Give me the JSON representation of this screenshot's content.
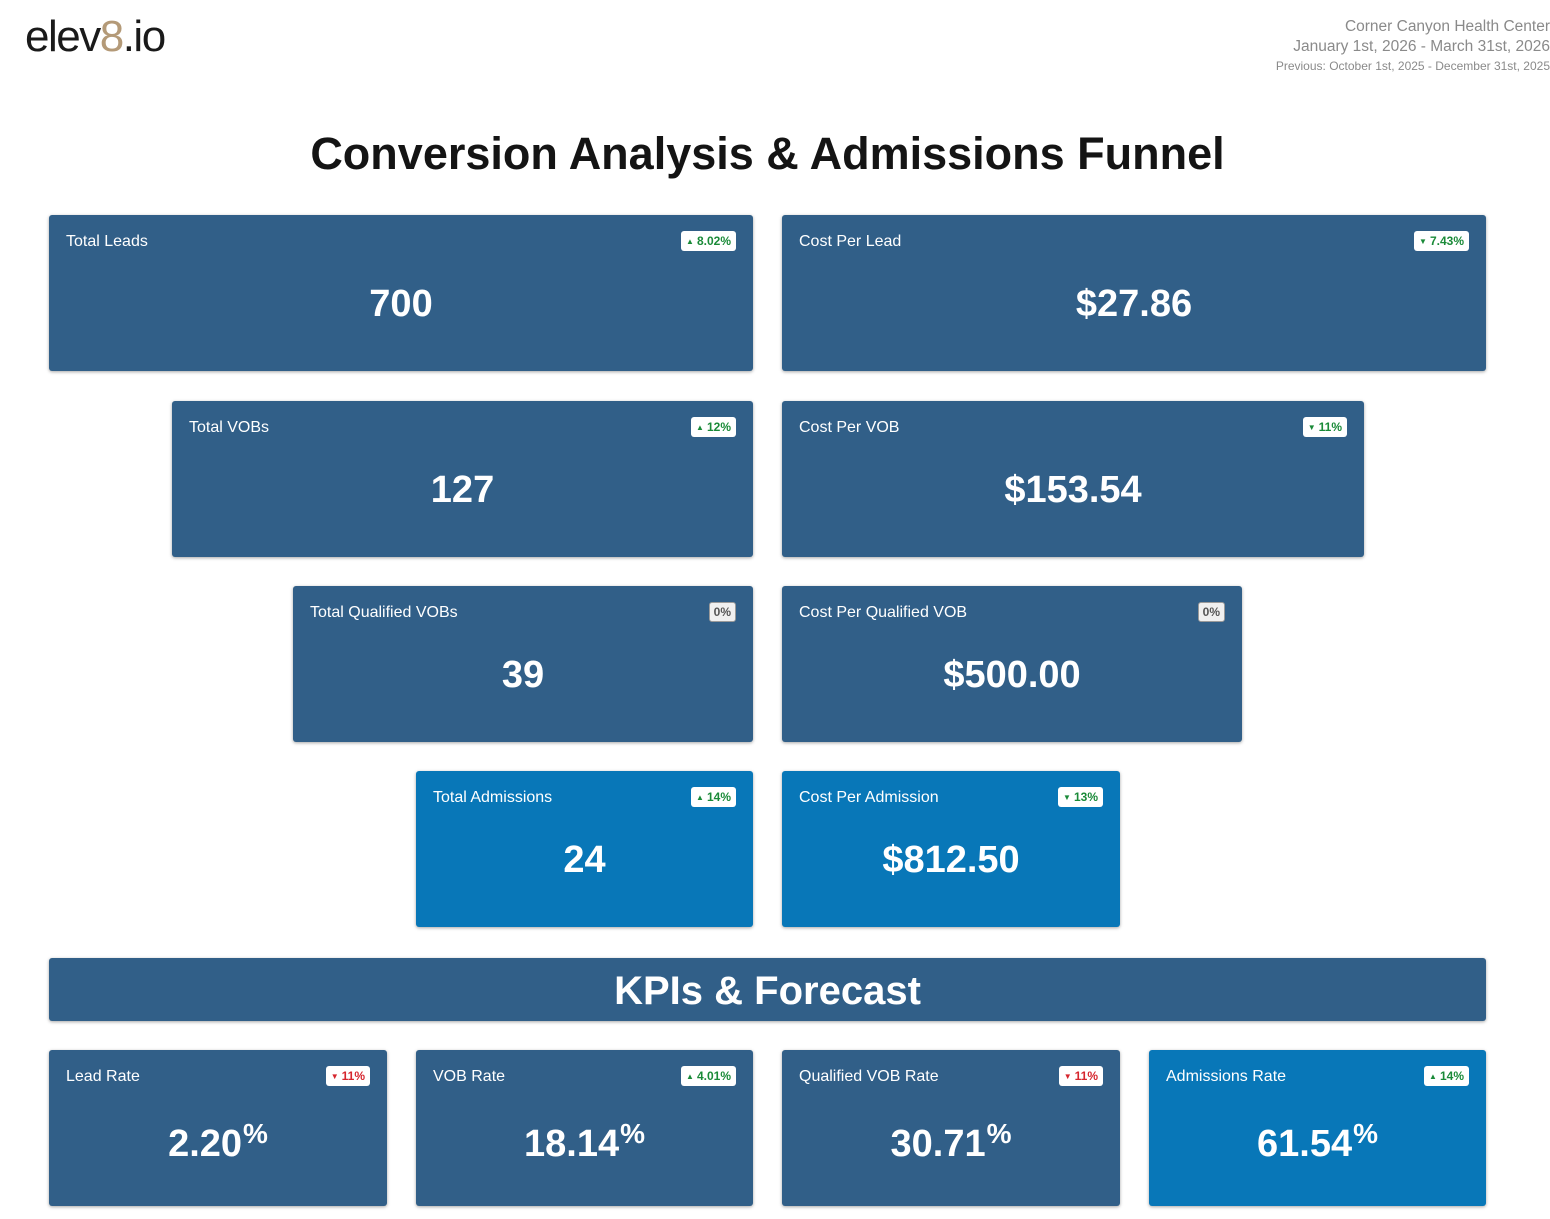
{
  "header": {
    "logo_prefix": "elev",
    "logo_accent": "8",
    "logo_suffix": ".io",
    "clinic_name": "Corner Canyon Health Center",
    "date_range": "January 1st, 2026 - March 31st, 2026",
    "previous_range": "Previous: October 1st, 2025 - December 31st, 2025"
  },
  "title": "Conversion Analysis & Admissions Funnel",
  "funnel": {
    "total_leads": {
      "label": "Total Leads",
      "value": "700",
      "change": "8.02%",
      "direction": "up",
      "color": "green"
    },
    "cost_per_lead": {
      "label": "Cost Per Lead",
      "value": "$27.86",
      "change": "7.43%",
      "direction": "down",
      "color": "green"
    },
    "total_vobs": {
      "label": "Total VOBs",
      "value": "127",
      "change": "12%",
      "direction": "up",
      "color": "green"
    },
    "cost_per_vob": {
      "label": "Cost Per VOB",
      "value": "$153.54",
      "change": "11%",
      "direction": "down",
      "color": "green"
    },
    "total_qualified_vobs": {
      "label": "Total Qualified VOBs",
      "value": "39",
      "change": "0%",
      "direction": "none",
      "color": "gray"
    },
    "cost_per_qualified_vob": {
      "label": "Cost Per Qualified VOB",
      "value": "$500.00",
      "change": "0%",
      "direction": "none",
      "color": "gray"
    },
    "total_admissions": {
      "label": "Total Admissions",
      "value": "24",
      "change": "14%",
      "direction": "up",
      "color": "green"
    },
    "cost_per_admission": {
      "label": "Cost Per Admission",
      "value": "$812.50",
      "change": "13%",
      "direction": "down",
      "color": "green"
    }
  },
  "kpi_section": {
    "title": "KPIs & Forecast",
    "lead_rate": {
      "label": "Lead Rate",
      "value": "2.20",
      "unit": "%",
      "change": "11%",
      "direction": "down",
      "color": "red"
    },
    "vob_rate": {
      "label": "VOB Rate",
      "value": "18.14",
      "unit": "%",
      "change": "4.01%",
      "direction": "up",
      "color": "green"
    },
    "qualified_vob_rate": {
      "label": "Qualified VOB Rate",
      "value": "30.71",
      "unit": "%",
      "change": "11%",
      "direction": "down",
      "color": "red"
    },
    "admissions_rate": {
      "label": "Admissions Rate",
      "value": "61.54",
      "unit": "%",
      "change": "14%",
      "direction": "up",
      "color": "green"
    }
  },
  "colors": {
    "card": "#315f88",
    "card_highlight": "#0877b8",
    "positive": "#1a8a38",
    "negative": "#d6262e",
    "logo_accent": "#b49a78"
  },
  "icons": {
    "up": "triangle-up-icon",
    "down": "triangle-down-icon"
  }
}
